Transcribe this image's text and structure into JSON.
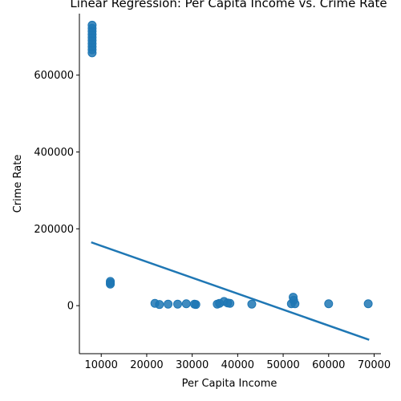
{
  "chart_data": {
    "type": "scatter",
    "title": "Linear Regression: Per Capita Income vs. Crime Rate",
    "xlabel": "Per Capita Income",
    "ylabel": "Crime Rate",
    "xlim": [
      5200,
      71500
    ],
    "ylim": [
      -125000,
      760000
    ],
    "x_ticks": [
      10000,
      20000,
      30000,
      40000,
      50000,
      60000,
      70000
    ],
    "x_tick_labels": [
      "10000",
      "20000",
      "30000",
      "40000",
      "50000",
      "60000",
      "70000"
    ],
    "y_ticks": [
      0,
      200000,
      400000,
      600000
    ],
    "y_tick_labels": [
      "0",
      "200000",
      "400000",
      "600000"
    ],
    "grid": false,
    "point_color": "#1f77b4",
    "line_color": "#1f77b4",
    "points": [
      {
        "x": 8000,
        "y": 730000
      },
      {
        "x": 8000,
        "y": 722000
      },
      {
        "x": 8000,
        "y": 714000
      },
      {
        "x": 8000,
        "y": 706000
      },
      {
        "x": 8000,
        "y": 698000
      },
      {
        "x": 8000,
        "y": 690000
      },
      {
        "x": 8000,
        "y": 682000
      },
      {
        "x": 8000,
        "y": 674000
      },
      {
        "x": 8000,
        "y": 666000
      },
      {
        "x": 8000,
        "y": 658000
      },
      {
        "x": 12000,
        "y": 63000
      },
      {
        "x": 12000,
        "y": 59000
      },
      {
        "x": 12000,
        "y": 56000
      },
      {
        "x": 21800,
        "y": 6000
      },
      {
        "x": 22800,
        "y": 3000
      },
      {
        "x": 24700,
        "y": 4000
      },
      {
        "x": 26800,
        "y": 4000
      },
      {
        "x": 28700,
        "y": 5000
      },
      {
        "x": 30500,
        "y": 4000
      },
      {
        "x": 30800,
        "y": 3000
      },
      {
        "x": 35500,
        "y": 4000
      },
      {
        "x": 36000,
        "y": 6000
      },
      {
        "x": 37000,
        "y": 11000
      },
      {
        "x": 37800,
        "y": 7000
      },
      {
        "x": 38300,
        "y": 6000
      },
      {
        "x": 43100,
        "y": 4000
      },
      {
        "x": 51800,
        "y": 5000
      },
      {
        "x": 52200,
        "y": 22000
      },
      {
        "x": 52300,
        "y": 14000
      },
      {
        "x": 52600,
        "y": 5000
      },
      {
        "x": 60000,
        "y": 5000
      },
      {
        "x": 68700,
        "y": 5000
      }
    ],
    "regression_line": {
      "x": [
        8000,
        68700
      ],
      "y": [
        164000,
        -88000
      ]
    }
  }
}
